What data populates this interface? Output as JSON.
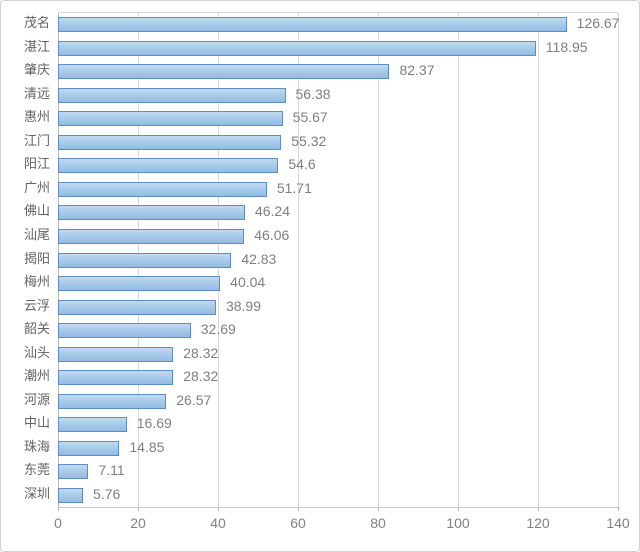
{
  "chart_data": {
    "type": "bar",
    "orientation": "horizontal",
    "title": "",
    "xlabel": "",
    "ylabel": "",
    "categories": [
      "茂名",
      "湛江",
      "肇庆",
      "清远",
      "惠州",
      "江门",
      "阳江",
      "广州",
      "佛山",
      "汕尾",
      "揭阳",
      "梅州",
      "云浮",
      "韶关",
      "汕头",
      "潮州",
      "河源",
      "中山",
      "珠海",
      "东莞",
      "深圳"
    ],
    "values": [
      126.67,
      118.95,
      82.37,
      56.38,
      55.67,
      55.32,
      54.6,
      51.71,
      46.24,
      46.06,
      42.83,
      40.04,
      38.99,
      32.69,
      28.32,
      28.32,
      26.57,
      16.69,
      14.85,
      7.11,
      5.76
    ],
    "value_labels": [
      "126.67",
      "118.95",
      "82.37",
      "56.38",
      "55.67",
      "55.32",
      "54.6",
      "51.71",
      "46.24",
      "46.06",
      "42.83",
      "40.04",
      "38.99",
      "32.69",
      "28.32",
      "28.32",
      "26.57",
      "16.69",
      "14.85",
      "7.11",
      "5.76"
    ],
    "xlim": [
      0,
      140
    ],
    "x_ticks": [
      "0",
      "20",
      "40",
      "60",
      "80",
      "100",
      "120",
      "140"
    ],
    "grid": true,
    "legend_position": "none",
    "colors": {
      "bar_fill_light": "#c2daf2",
      "bar_fill_dark": "#93bbe3",
      "bar_border": "#5d8cc7",
      "gridline": "#d9d9d9",
      "axis_line": "#b9b9b9",
      "category_text": "#636363",
      "value_text": "#7f7f7f",
      "tick_text": "#828282",
      "frame_border": "#d2d2d2",
      "background": "#ffffff"
    }
  }
}
